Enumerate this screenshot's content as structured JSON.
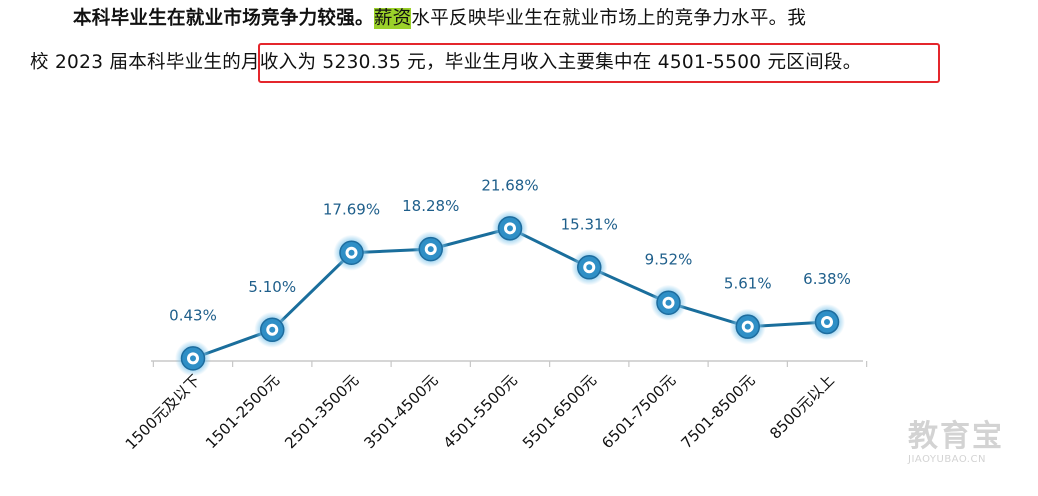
{
  "paragraph": {
    "line1_bold": "本科毕业生在就业市场竞争力较强。",
    "line1_highlight": "薪资",
    "line1_rest": "水平反映毕业生在就业市场上的竞争力水平。我",
    "line2_pre": "校 2023 届本科毕业生的",
    "line2_boxed": "月收入为 5230.35 元，毕业生月收入主要集中在 4501-5500 元区间段。"
  },
  "colors": {
    "line": "#1a6e9c",
    "label": "#1f5f8b",
    "marker_ring": "#2f8fc6",
    "highlight": "#9bd12a",
    "box": "#e4262c"
  },
  "chart_data": {
    "type": "line",
    "categories": [
      "1500元及以下",
      "1501-2500元",
      "2501-3500元",
      "3501-4500元",
      "4501-5500元",
      "5501-6500元",
      "6501-7500元",
      "7501-8500元",
      "8500元以上"
    ],
    "values": [
      0.43,
      5.1,
      17.69,
      18.28,
      21.68,
      15.31,
      9.52,
      5.61,
      6.38
    ],
    "labels": [
      "0.43%",
      "5.10%",
      "17.69%",
      "18.28%",
      "21.68%",
      "15.31%",
      "9.52%",
      "5.61%",
      "6.38%"
    ],
    "title": "",
    "xlabel": "",
    "ylabel": "",
    "grid": false,
    "legend": "none"
  },
  "watermark": {
    "brand": "教育宝",
    "url": "JIAOYUBAO.CN"
  }
}
